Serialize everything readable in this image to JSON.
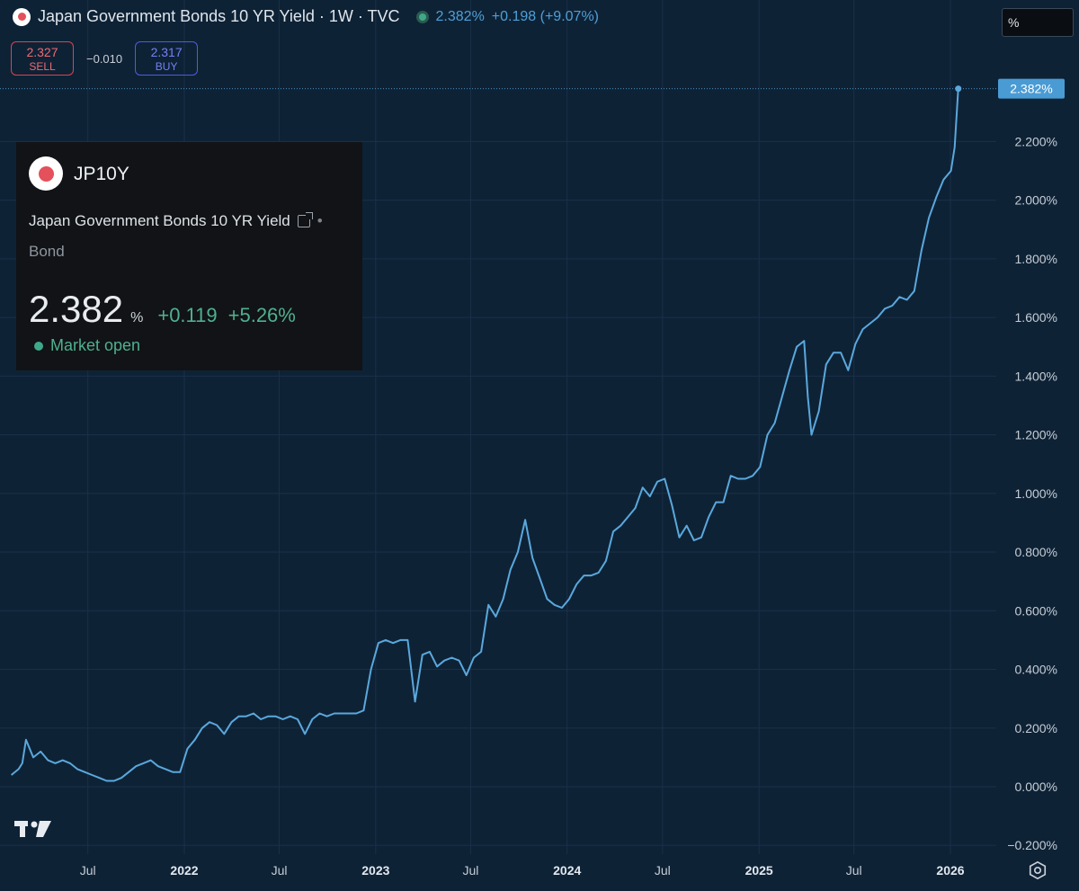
{
  "header": {
    "title": "Japan Government Bonds 10 YR Yield · 1W · TVC",
    "last": "2.382%",
    "change": "+0.198 (+9.07%)"
  },
  "trade": {
    "sell_price": "2.327",
    "sell_label": "SELL",
    "spread": "−0.010",
    "buy_price": "2.317",
    "buy_label": "BUY"
  },
  "unit_selector": "%",
  "info_card": {
    "ticker": "JP10Y",
    "name": "Japan Government Bonds 10 YR Yield",
    "type": "Bond",
    "price": "2.382",
    "unit": "%",
    "change": "+0.119",
    "change_pct": "+5.26%",
    "status": "Market open"
  },
  "colors": {
    "background": "#0e2236",
    "line": "#5aa8dc",
    "positive": "#4fb08f",
    "sell": "#d8454f",
    "buy": "#4f5be0"
  },
  "icons": [
    "japan-flag-icon",
    "external-link-icon",
    "tradingview-logo-icon",
    "settings-gear-icon"
  ],
  "chart_data": {
    "type": "line",
    "ylim": [
      -0.2,
      2.4
    ],
    "y_ticks": [
      "−0.200%",
      "0.000%",
      "0.200%",
      "0.400%",
      "0.600%",
      "0.800%",
      "1.000%",
      "1.200%",
      "1.400%",
      "1.600%",
      "1.800%",
      "2.000%",
      "2.200%"
    ],
    "y_tick_values": [
      -0.2,
      0.0,
      0.2,
      0.4,
      0.6,
      0.8,
      1.0,
      1.2,
      1.4,
      1.6,
      1.8,
      2.0,
      2.2
    ],
    "x_ticks": [
      "Jul",
      "2022",
      "Jul",
      "2023",
      "Jul",
      "2024",
      "Jul",
      "2025",
      "Jul",
      "2026"
    ],
    "x_tick_dates": [
      "2021-07-01",
      "2022-01-01",
      "2022-07-01",
      "2023-01-01",
      "2023-07-01",
      "2024-01-01",
      "2024-07-01",
      "2025-01-01",
      "2025-07-01",
      "2026-01-01"
    ],
    "last_value_label": "2.382%",
    "series": [
      {
        "x": [
          "2021-02-05",
          "2021-02-19",
          "2021-02-26",
          "2021-03-05",
          "2021-03-19",
          "2021-04-02",
          "2021-04-16",
          "2021-04-30",
          "2021-05-14",
          "2021-05-28",
          "2021-06-11",
          "2021-06-25",
          "2021-07-09",
          "2021-07-23",
          "2021-08-06",
          "2021-08-20",
          "2021-09-03",
          "2021-09-17",
          "2021-10-01",
          "2021-10-15",
          "2021-10-29",
          "2021-11-12",
          "2021-11-26",
          "2021-12-10",
          "2021-12-24",
          "2022-01-07",
          "2022-01-21",
          "2022-02-04",
          "2022-02-18",
          "2022-03-04",
          "2022-03-18",
          "2022-04-01",
          "2022-04-15",
          "2022-04-29",
          "2022-05-13",
          "2022-05-27",
          "2022-06-10",
          "2022-06-24",
          "2022-07-08",
          "2022-07-22",
          "2022-08-05",
          "2022-08-19",
          "2022-09-02",
          "2022-09-16",
          "2022-09-30",
          "2022-10-14",
          "2022-10-28",
          "2022-11-11",
          "2022-11-25",
          "2022-12-09",
          "2022-12-23",
          "2023-01-06",
          "2023-01-20",
          "2023-02-03",
          "2023-02-17",
          "2023-03-03",
          "2023-03-17",
          "2023-03-31",
          "2023-04-14",
          "2023-04-28",
          "2023-05-12",
          "2023-05-26",
          "2023-06-09",
          "2023-06-23",
          "2023-07-07",
          "2023-07-21",
          "2023-08-04",
          "2023-08-18",
          "2023-09-01",
          "2023-09-15",
          "2023-09-29",
          "2023-10-13",
          "2023-10-27",
          "2023-11-10",
          "2023-11-24",
          "2023-12-08",
          "2023-12-22",
          "2024-01-05",
          "2024-01-19",
          "2024-02-02",
          "2024-02-16",
          "2024-03-01",
          "2024-03-15",
          "2024-03-29",
          "2024-04-12",
          "2024-04-26",
          "2024-05-10",
          "2024-05-24",
          "2024-06-07",
          "2024-06-21",
          "2024-07-05",
          "2024-07-19",
          "2024-08-02",
          "2024-08-16",
          "2024-08-30",
          "2024-09-13",
          "2024-09-27",
          "2024-10-11",
          "2024-10-25",
          "2024-11-08",
          "2024-11-22",
          "2024-12-06",
          "2024-12-20",
          "2025-01-03",
          "2025-01-17",
          "2025-01-31",
          "2025-02-14",
          "2025-02-28",
          "2025-03-14",
          "2025-03-28",
          "2025-04-04",
          "2025-04-11",
          "2025-04-25",
          "2025-05-09",
          "2025-05-23",
          "2025-06-06",
          "2025-06-20",
          "2025-07-04",
          "2025-07-18",
          "2025-08-01",
          "2025-08-15",
          "2025-08-29",
          "2025-09-12",
          "2025-09-26",
          "2025-10-10",
          "2025-10-24",
          "2025-11-07",
          "2025-11-21",
          "2025-12-05",
          "2025-12-19",
          "2026-01-02",
          "2026-01-09",
          "2026-01-16"
        ],
        "values": [
          0.04,
          0.06,
          0.08,
          0.16,
          0.1,
          0.12,
          0.09,
          0.08,
          0.09,
          0.08,
          0.06,
          0.05,
          0.04,
          0.03,
          0.02,
          0.02,
          0.03,
          0.05,
          0.07,
          0.08,
          0.09,
          0.07,
          0.06,
          0.05,
          0.05,
          0.13,
          0.16,
          0.2,
          0.22,
          0.21,
          0.18,
          0.22,
          0.24,
          0.24,
          0.25,
          0.23,
          0.24,
          0.24,
          0.23,
          0.24,
          0.23,
          0.18,
          0.23,
          0.25,
          0.24,
          0.25,
          0.25,
          0.25,
          0.25,
          0.26,
          0.4,
          0.49,
          0.5,
          0.49,
          0.5,
          0.5,
          0.29,
          0.45,
          0.46,
          0.41,
          0.43,
          0.44,
          0.43,
          0.38,
          0.44,
          0.46,
          0.62,
          0.58,
          0.64,
          0.74,
          0.8,
          0.91,
          0.78,
          0.71,
          0.64,
          0.62,
          0.61,
          0.64,
          0.69,
          0.72,
          0.72,
          0.73,
          0.77,
          0.87,
          0.89,
          0.92,
          0.95,
          1.02,
          0.99,
          1.04,
          1.05,
          0.96,
          0.85,
          0.89,
          0.84,
          0.85,
          0.92,
          0.97,
          0.97,
          1.06,
          1.05,
          1.05,
          1.06,
          1.09,
          1.2,
          1.24,
          1.33,
          1.42,
          1.5,
          1.52,
          1.33,
          1.2,
          1.28,
          1.44,
          1.48,
          1.48,
          1.42,
          1.51,
          1.56,
          1.58,
          1.6,
          1.63,
          1.64,
          1.67,
          1.66,
          1.69,
          1.83,
          1.94,
          2.01,
          2.07,
          2.1,
          2.18,
          2.38
        ]
      }
    ]
  }
}
